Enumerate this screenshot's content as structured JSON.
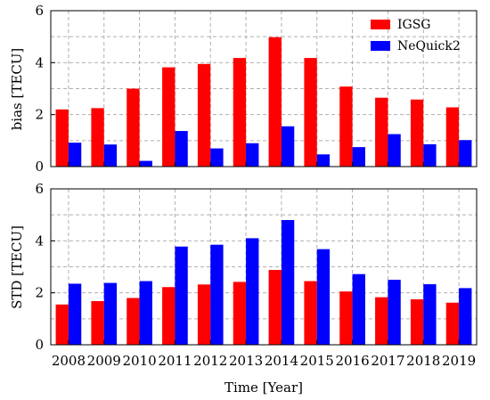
{
  "chart_data": [
    {
      "type": "bar",
      "categories": [
        "2008",
        "2009",
        "2010",
        "2011",
        "2012",
        "2013",
        "2014",
        "2015",
        "2016",
        "2017",
        "2018",
        "2019"
      ],
      "ylabel": "bias [TECU]",
      "xlabel": "",
      "ylim": [
        0,
        6
      ],
      "yticks": [
        0,
        2,
        4,
        6
      ],
      "grid": true,
      "legend": "top-right",
      "series": [
        {
          "name": "IGSG",
          "color": "#ff0000",
          "values": [
            2.2,
            2.25,
            3.0,
            3.82,
            3.95,
            4.18,
            4.98,
            4.18,
            3.08,
            2.65,
            2.58,
            2.28
          ]
        },
        {
          "name": "NeQuick2",
          "color": "#0000ff",
          "values": [
            0.92,
            0.85,
            0.22,
            1.37,
            0.7,
            0.9,
            1.55,
            0.47,
            0.75,
            1.25,
            0.86,
            1.02
          ]
        }
      ]
    },
    {
      "type": "bar",
      "categories": [
        "2008",
        "2009",
        "2010",
        "2011",
        "2012",
        "2013",
        "2014",
        "2015",
        "2016",
        "2017",
        "2018",
        "2019"
      ],
      "ylabel": "STD [TECU]",
      "xlabel": "Time [Year]",
      "ylim": [
        0,
        6
      ],
      "yticks": [
        0,
        2,
        4,
        6
      ],
      "grid": true,
      "series": [
        {
          "name": "IGSG",
          "color": "#ff0000",
          "values": [
            1.55,
            1.68,
            1.8,
            2.22,
            2.32,
            2.42,
            2.88,
            2.45,
            2.05,
            1.83,
            1.75,
            1.62
          ]
        },
        {
          "name": "NeQuick2",
          "color": "#0000ff",
          "values": [
            2.35,
            2.38,
            2.45,
            3.78,
            3.85,
            4.1,
            4.8,
            3.68,
            2.72,
            2.5,
            2.33,
            2.18
          ]
        }
      ]
    }
  ]
}
